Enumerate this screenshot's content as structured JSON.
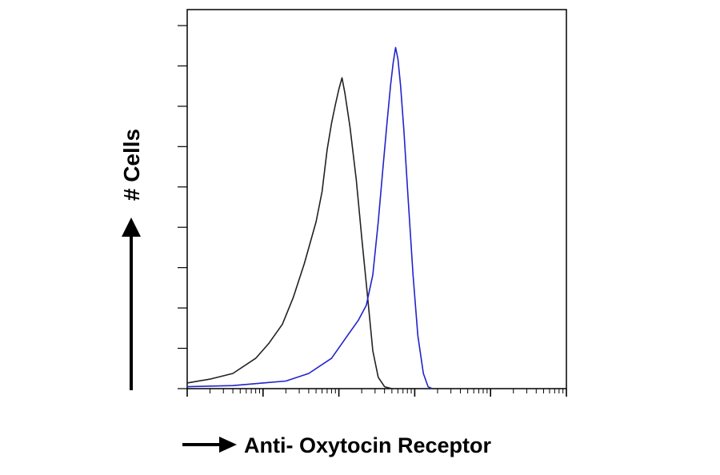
{
  "chart_data": {
    "type": "line",
    "title": "",
    "xlabel": "Anti- Oxytocin Receptor",
    "ylabel": "# Cells",
    "x_scale": "log",
    "xlim": [
      1,
      100000
    ],
    "ylim": [
      0,
      100
    ],
    "grid": false,
    "series": [
      {
        "color": "#222222",
        "points": [
          [
            1,
            1.5
          ],
          [
            2,
            2.5
          ],
          [
            4,
            4
          ],
          [
            8,
            8
          ],
          [
            12,
            12
          ],
          [
            18,
            17
          ],
          [
            25,
            24
          ],
          [
            35,
            33
          ],
          [
            50,
            44
          ],
          [
            60,
            52
          ],
          [
            70,
            63
          ],
          [
            80,
            70
          ],
          [
            90,
            75
          ],
          [
            100,
            79
          ],
          [
            110,
            82
          ],
          [
            120,
            78
          ],
          [
            140,
            69
          ],
          [
            170,
            55
          ],
          [
            200,
            40
          ],
          [
            240,
            24
          ],
          [
            280,
            10
          ],
          [
            330,
            3
          ],
          [
            400,
            0.5
          ],
          [
            500,
            0
          ]
        ]
      },
      {
        "color": "#2222cc",
        "points": [
          [
            1,
            0.5
          ],
          [
            4,
            0.8
          ],
          [
            10,
            1.5
          ],
          [
            20,
            2
          ],
          [
            40,
            4
          ],
          [
            80,
            8
          ],
          [
            130,
            14
          ],
          [
            180,
            18
          ],
          [
            230,
            22
          ],
          [
            280,
            30
          ],
          [
            330,
            44
          ],
          [
            380,
            58
          ],
          [
            430,
            70
          ],
          [
            480,
            80
          ],
          [
            520,
            86
          ],
          [
            560,
            90
          ],
          [
            600,
            87
          ],
          [
            650,
            80
          ],
          [
            720,
            68
          ],
          [
            820,
            50
          ],
          [
            950,
            30
          ],
          [
            1100,
            14
          ],
          [
            1300,
            4
          ],
          [
            1500,
            0.5
          ],
          [
            1700,
            0
          ]
        ]
      }
    ]
  }
}
